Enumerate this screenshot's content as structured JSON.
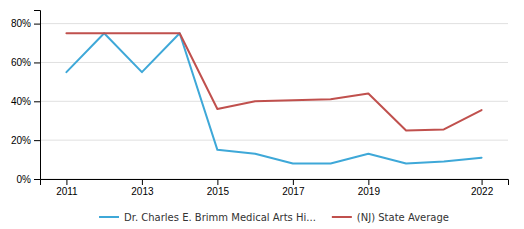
{
  "chart_data": {
    "type": "line",
    "x": [
      2011,
      2012,
      2013,
      2014,
      2015,
      2016,
      2017,
      2018,
      2019,
      2020,
      2021,
      2022
    ],
    "series": [
      {
        "name": "Dr. Charles E. Brimm Medical Arts Hi...",
        "color": "#3ea8d8",
        "values": [
          0.55,
          0.75,
          0.55,
          0.75,
          0.15,
          0.13,
          0.08,
          0.08,
          0.13,
          0.08,
          0.09,
          0.11
        ]
      },
      {
        "name": "(NJ) State Average",
        "color": "#c0504d",
        "values": [
          0.75,
          0.75,
          0.75,
          0.75,
          0.36,
          0.4,
          0.405,
          0.41,
          0.44,
          0.25,
          0.255,
          0.355
        ]
      }
    ],
    "xlim": [
      2010.3,
      2022.7
    ],
    "xticks": [
      2011,
      2013,
      2015,
      2017,
      2019,
      2022
    ],
    "ylim": [
      0.0,
      0.87
    ],
    "yticks": [
      {
        "value": 0.0,
        "label": "0%"
      },
      {
        "value": 0.2,
        "label": "20%"
      },
      {
        "value": 0.4,
        "label": "40%"
      },
      {
        "value": 0.6,
        "label": "60%"
      },
      {
        "value": 0.8,
        "label": "80%"
      }
    ],
    "grid": true,
    "legend": "bottom"
  }
}
